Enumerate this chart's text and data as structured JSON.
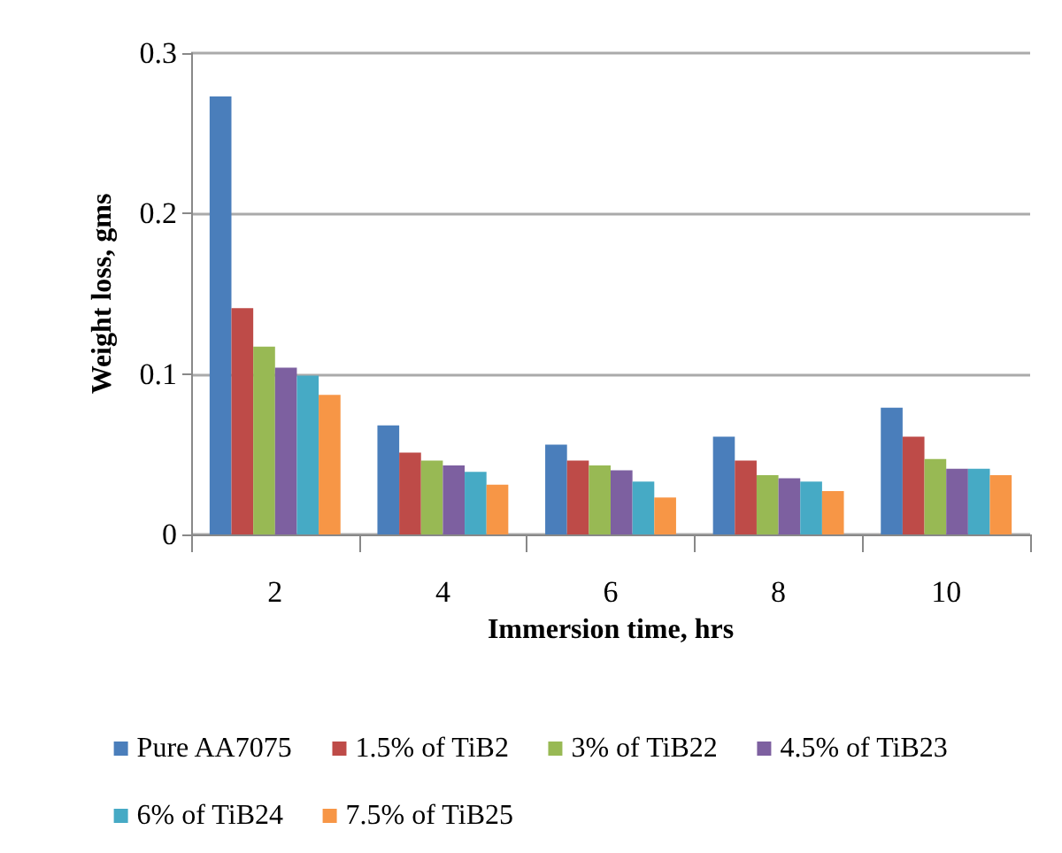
{
  "chart_data": {
    "type": "bar",
    "xlabel": "Immersion time, hrs",
    "ylabel": "Weight loss, gms",
    "categories": [
      "2",
      "4",
      "6",
      "8",
      "10"
    ],
    "series": [
      {
        "name": "Pure AA7075",
        "color": "#4a7ebb",
        "values": [
          0.273,
          0.068,
          0.056,
          0.061,
          0.079
        ]
      },
      {
        "name": "1.5% of TiB2",
        "color": "#be4b48",
        "values": [
          0.141,
          0.051,
          0.046,
          0.046,
          0.061
        ]
      },
      {
        "name": "3% of TiB22",
        "color": "#98b954",
        "values": [
          0.117,
          0.046,
          0.043,
          0.037,
          0.047
        ]
      },
      {
        "name": "4.5% of TiB23",
        "color": "#7d60a0",
        "values": [
          0.104,
          0.043,
          0.04,
          0.035,
          0.041
        ]
      },
      {
        "name": "6% of TiB24",
        "color": "#46aac5",
        "values": [
          0.099,
          0.039,
          0.033,
          0.033,
          0.041
        ]
      },
      {
        "name": "7.5% of TiB25",
        "color": "#f79646",
        "values": [
          0.087,
          0.031,
          0.023,
          0.027,
          0.037
        ]
      }
    ],
    "ylim": [
      0,
      0.3
    ],
    "yticks": [
      0,
      0.1,
      0.2,
      0.3
    ],
    "grid": "y",
    "legend": "bottom"
  }
}
